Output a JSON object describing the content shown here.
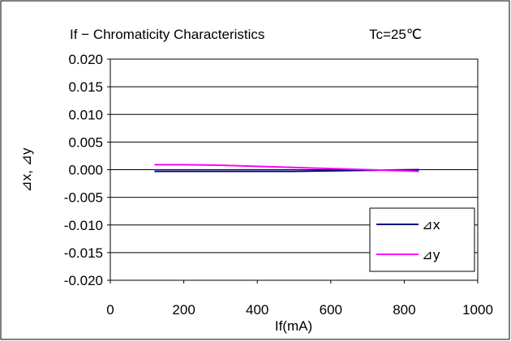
{
  "chart_data": {
    "type": "line",
    "title": "If − Chromaticity Characteristics",
    "subtitle": "Tc=25℃",
    "xlabel": "If(mA)",
    "ylabel": "⊿x, ⊿y",
    "xlim": [
      0,
      1000
    ],
    "ylim": [
      -0.02,
      0.02
    ],
    "x_ticks": [
      "0",
      "200",
      "400",
      "600",
      "800",
      "1000"
    ],
    "y_ticks": [
      "0.020",
      "0.015",
      "0.010",
      "0.005",
      "0.000",
      "-0.005",
      "-0.010",
      "-0.015",
      "-0.020"
    ],
    "y_tick_values": [
      0.02,
      0.015,
      0.01,
      0.005,
      0,
      -0.005,
      -0.01,
      -0.015,
      -0.02
    ],
    "x_tick_values": [
      0,
      200,
      400,
      600,
      800,
      1000
    ],
    "grid": "horizontal",
    "legend_position": "bottom-right",
    "series": [
      {
        "name": "⊿x",
        "color": "#000080",
        "x": [
          120,
          200,
          300,
          400,
          500,
          600,
          700,
          840
        ],
        "y": [
          -0.0003,
          -0.0003,
          -0.0003,
          -0.0003,
          -0.0003,
          -0.0002,
          -0.0001,
          0.0
        ]
      },
      {
        "name": "⊿y",
        "color": "#ff00ff",
        "x": [
          120,
          200,
          300,
          400,
          500,
          600,
          700,
          840
        ],
        "y": [
          0.0009,
          0.0009,
          0.0008,
          0.0006,
          0.0004,
          0.0002,
          0.0,
          -0.0003
        ]
      }
    ]
  }
}
